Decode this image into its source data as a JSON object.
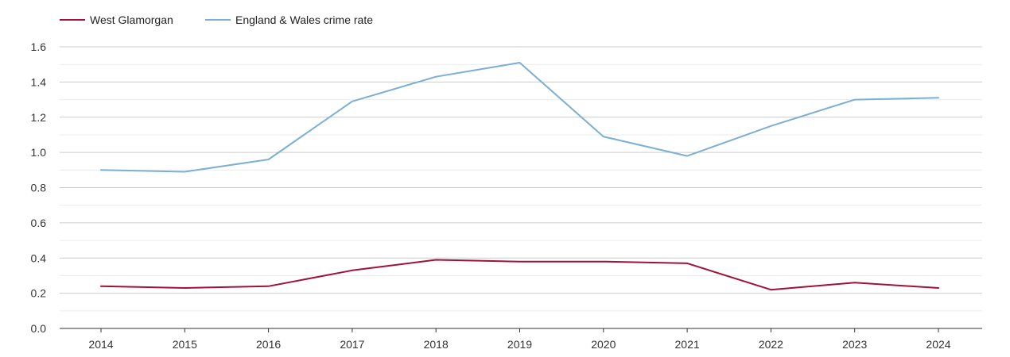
{
  "chart_data": {
    "type": "line",
    "title": "",
    "xlabel": "",
    "ylabel": "",
    "x": [
      2014,
      2015,
      2016,
      2017,
      2018,
      2019,
      2020,
      2021,
      2022,
      2023,
      2024
    ],
    "x_tick_labels": [
      "2014",
      "2015",
      "2016",
      "2017",
      "2018",
      "2019",
      "2020",
      "2021",
      "2022",
      "2023",
      "2024"
    ],
    "ylim": [
      0,
      1.6
    ],
    "y_tick_labels": [
      "0.0",
      "0.2",
      "0.4",
      "0.6",
      "0.8",
      "1.0",
      "1.2",
      "1.4",
      "1.6"
    ],
    "grid": true,
    "legend_position": "top-left",
    "series": [
      {
        "name": "West Glamorgan",
        "color": "#a0113a",
        "values": [
          0.24,
          0.23,
          0.24,
          0.33,
          0.39,
          0.38,
          0.38,
          0.37,
          0.22,
          0.26,
          0.23
        ]
      },
      {
        "name": "England & Wales crime rate",
        "color": "#7bafd4",
        "values": [
          0.9,
          0.89,
          0.96,
          1.29,
          1.43,
          1.51,
          1.09,
          0.98,
          1.15,
          1.3,
          1.31
        ]
      }
    ]
  }
}
